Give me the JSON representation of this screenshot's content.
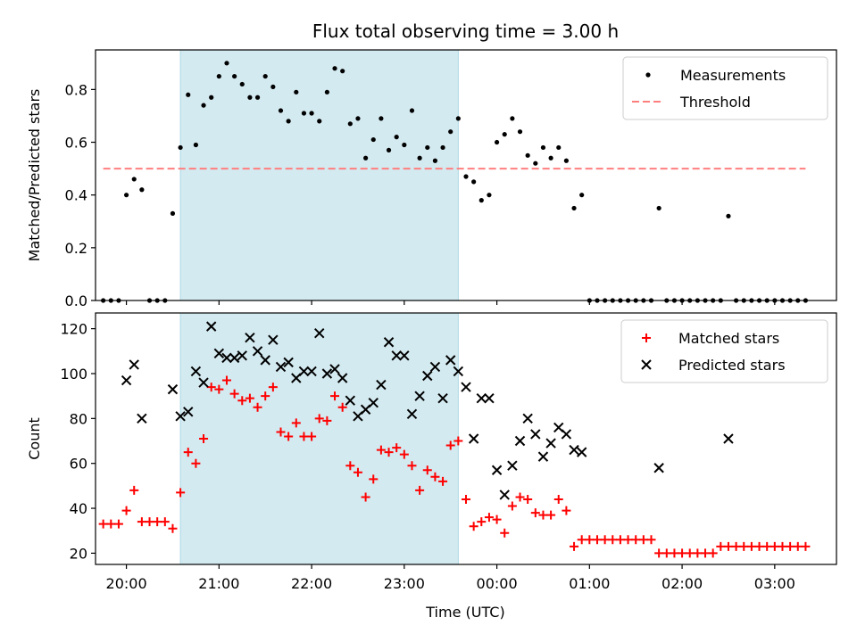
{
  "chart_data": [
    {
      "type": "scatter",
      "title": "Flux total observing time = 3.00 h",
      "ylabel": "Matched/Predicted stars",
      "xlabel": "",
      "xlim": [
        "19:40",
        "03:40"
      ],
      "ylim": [
        0,
        0.95
      ],
      "yticks": [
        0.0,
        0.2,
        0.4,
        0.6,
        0.8
      ],
      "ytick_labels": [
        "0.0",
        "0.2",
        "0.4",
        "0.6",
        "0.8"
      ],
      "shaded_interval": [
        "20:35",
        "23:35"
      ],
      "shade_color": "#d3eaf0",
      "legend_position": "upper right",
      "series": [
        {
          "name": "Measurements",
          "color": "#000000",
          "marker": "dot",
          "points": [
            [
              "19:45",
              0
            ],
            [
              "19:50",
              0
            ],
            [
              "19:55",
              0
            ],
            [
              "20:00",
              0.4
            ],
            [
              "20:05",
              0.46
            ],
            [
              "20:10",
              0.42
            ],
            [
              "20:15",
              0
            ],
            [
              "20:20",
              0
            ],
            [
              "20:25",
              0
            ],
            [
              "20:30",
              0.33
            ],
            [
              "20:35",
              0.58
            ],
            [
              "20:40",
              0.78
            ],
            [
              "20:45",
              0.59
            ],
            [
              "20:50",
              0.74
            ],
            [
              "20:55",
              0.77
            ],
            [
              "21:00",
              0.85
            ],
            [
              "21:05",
              0.9
            ],
            [
              "21:10",
              0.85
            ],
            [
              "21:15",
              0.82
            ],
            [
              "21:20",
              0.77
            ],
            [
              "21:25",
              0.77
            ],
            [
              "21:30",
              0.85
            ],
            [
              "21:35",
              0.81
            ],
            [
              "21:40",
              0.72
            ],
            [
              "21:45",
              0.68
            ],
            [
              "21:50",
              0.79
            ],
            [
              "21:55",
              0.71
            ],
            [
              "22:00",
              0.71
            ],
            [
              "22:05",
              0.68
            ],
            [
              "22:10",
              0.79
            ],
            [
              "22:15",
              0.88
            ],
            [
              "22:20",
              0.87
            ],
            [
              "22:25",
              0.67
            ],
            [
              "22:30",
              0.69
            ],
            [
              "22:35",
              0.54
            ],
            [
              "22:40",
              0.61
            ],
            [
              "22:45",
              0.69
            ],
            [
              "22:50",
              0.57
            ],
            [
              "22:55",
              0.62
            ],
            [
              "23:00",
              0.59
            ],
            [
              "23:05",
              0.72
            ],
            [
              "23:10",
              0.54
            ],
            [
              "23:15",
              0.58
            ],
            [
              "23:20",
              0.53
            ],
            [
              "23:25",
              0.58
            ],
            [
              "23:30",
              0.64
            ],
            [
              "23:35",
              0.69
            ],
            [
              "23:40",
              0.47
            ],
            [
              "23:45",
              0.45
            ],
            [
              "23:50",
              0.38
            ],
            [
              "23:55",
              0.4
            ],
            [
              "00:00",
              0.6
            ],
            [
              "00:05",
              0.63
            ],
            [
              "00:10",
              0.69
            ],
            [
              "00:15",
              0.64
            ],
            [
              "00:20",
              0.55
            ],
            [
              "00:25",
              0.52
            ],
            [
              "00:30",
              0.58
            ],
            [
              "00:35",
              0.54
            ],
            [
              "00:40",
              0.58
            ],
            [
              "00:45",
              0.53
            ],
            [
              "00:50",
              0.35
            ],
            [
              "00:55",
              0.4
            ],
            [
              "01:00",
              0
            ],
            [
              "01:05",
              0
            ],
            [
              "01:10",
              0
            ],
            [
              "01:15",
              0
            ],
            [
              "01:20",
              0
            ],
            [
              "01:25",
              0
            ],
            [
              "01:30",
              0
            ],
            [
              "01:35",
              0
            ],
            [
              "01:40",
              0
            ],
            [
              "01:45",
              0.35
            ],
            [
              "01:50",
              0
            ],
            [
              "01:55",
              0
            ],
            [
              "02:00",
              0
            ],
            [
              "02:05",
              0
            ],
            [
              "02:10",
              0
            ],
            [
              "02:15",
              0
            ],
            [
              "02:20",
              0
            ],
            [
              "02:25",
              0
            ],
            [
              "02:30",
              0.32
            ],
            [
              "02:35",
              0
            ],
            [
              "02:40",
              0
            ],
            [
              "02:45",
              0
            ],
            [
              "02:50",
              0
            ],
            [
              "02:55",
              0
            ],
            [
              "03:00",
              0
            ],
            [
              "03:05",
              0
            ],
            [
              "03:10",
              0
            ],
            [
              "03:15",
              0
            ],
            [
              "03:20",
              0
            ]
          ]
        },
        {
          "name": "Threshold",
          "color": "#ff7f7f",
          "linestyle": "dashed",
          "value": 0.5,
          "x_range": [
            "19:45",
            "03:20"
          ]
        }
      ]
    },
    {
      "type": "scatter",
      "title": "",
      "ylabel": "Count",
      "xlabel": "Time (UTC)",
      "xlim": [
        "19:40",
        "03:40"
      ],
      "ylim": [
        15,
        127
      ],
      "yticks": [
        20,
        40,
        60,
        80,
        100,
        120
      ],
      "ytick_labels": [
        "20",
        "40",
        "60",
        "80",
        "100",
        "120"
      ],
      "xticks": [
        "20:00",
        "21:00",
        "22:00",
        "23:00",
        "00:00",
        "01:00",
        "02:00",
        "03:00"
      ],
      "shaded_interval": [
        "20:35",
        "23:35"
      ],
      "shade_color": "#d3eaf0",
      "legend_position": "upper right",
      "series": [
        {
          "name": "Matched stars",
          "color": "#ff0000",
          "marker": "plus",
          "points": [
            [
              "19:45",
              33
            ],
            [
              "19:50",
              33
            ],
            [
              "19:55",
              33
            ],
            [
              "20:00",
              39
            ],
            [
              "20:05",
              48
            ],
            [
              "20:10",
              34
            ],
            [
              "20:15",
              34
            ],
            [
              "20:20",
              34
            ],
            [
              "20:25",
              34
            ],
            [
              "20:30",
              31
            ],
            [
              "20:35",
              47
            ],
            [
              "20:40",
              65
            ],
            [
              "20:45",
              60
            ],
            [
              "20:50",
              71
            ],
            [
              "20:55",
              94
            ],
            [
              "21:00",
              93
            ],
            [
              "21:05",
              97
            ],
            [
              "21:10",
              91
            ],
            [
              "21:15",
              88
            ],
            [
              "21:20",
              89
            ],
            [
              "21:25",
              85
            ],
            [
              "21:30",
              90
            ],
            [
              "21:35",
              94
            ],
            [
              "21:40",
              74
            ],
            [
              "21:45",
              72
            ],
            [
              "21:50",
              78
            ],
            [
              "21:55",
              72
            ],
            [
              "22:00",
              72
            ],
            [
              "22:05",
              80
            ],
            [
              "22:10",
              79
            ],
            [
              "22:15",
              90
            ],
            [
              "22:20",
              85
            ],
            [
              "22:25",
              59
            ],
            [
              "22:30",
              56
            ],
            [
              "22:35",
              45
            ],
            [
              "22:40",
              53
            ],
            [
              "22:45",
              66
            ],
            [
              "22:50",
              65
            ],
            [
              "22:55",
              67
            ],
            [
              "23:00",
              64
            ],
            [
              "23:05",
              59
            ],
            [
              "23:10",
              48
            ],
            [
              "23:15",
              57
            ],
            [
              "23:20",
              54
            ],
            [
              "23:25",
              52
            ],
            [
              "23:30",
              68
            ],
            [
              "23:35",
              70
            ],
            [
              "23:40",
              44
            ],
            [
              "23:45",
              32
            ],
            [
              "23:50",
              34
            ],
            [
              "23:55",
              36
            ],
            [
              "00:00",
              35
            ],
            [
              "00:05",
              29
            ],
            [
              "00:10",
              41
            ],
            [
              "00:15",
              45
            ],
            [
              "00:20",
              44
            ],
            [
              "00:25",
              38
            ],
            [
              "00:30",
              37
            ],
            [
              "00:35",
              37
            ],
            [
              "00:40",
              44
            ],
            [
              "00:45",
              39
            ],
            [
              "00:50",
              23
            ],
            [
              "00:55",
              26
            ],
            [
              "01:00",
              26
            ],
            [
              "01:05",
              26
            ],
            [
              "01:10",
              26
            ],
            [
              "01:15",
              26
            ],
            [
              "01:20",
              26
            ],
            [
              "01:25",
              26
            ],
            [
              "01:30",
              26
            ],
            [
              "01:35",
              26
            ],
            [
              "01:40",
              26
            ],
            [
              "01:45",
              20
            ],
            [
              "01:50",
              20
            ],
            [
              "01:55",
              20
            ],
            [
              "02:00",
              20
            ],
            [
              "02:05",
              20
            ],
            [
              "02:10",
              20
            ],
            [
              "02:15",
              20
            ],
            [
              "02:20",
              20
            ],
            [
              "02:25",
              23
            ],
            [
              "02:30",
              23
            ],
            [
              "02:35",
              23
            ],
            [
              "02:40",
              23
            ],
            [
              "02:45",
              23
            ],
            [
              "02:50",
              23
            ],
            [
              "02:55",
              23
            ],
            [
              "03:00",
              23
            ],
            [
              "03:05",
              23
            ],
            [
              "03:10",
              23
            ],
            [
              "03:15",
              23
            ],
            [
              "03:20",
              23
            ]
          ]
        },
        {
          "name": "Predicted stars",
          "color": "#000000",
          "marker": "x",
          "points": [
            [
              "20:00",
              97
            ],
            [
              "20:05",
              104
            ],
            [
              "20:10",
              80
            ],
            [
              "20:30",
              93
            ],
            [
              "20:35",
              81
            ],
            [
              "20:40",
              83
            ],
            [
              "20:45",
              101
            ],
            [
              "20:50",
              96
            ],
            [
              "20:55",
              121
            ],
            [
              "21:00",
              109
            ],
            [
              "21:05",
              107
            ],
            [
              "21:10",
              107
            ],
            [
              "21:15",
              108
            ],
            [
              "21:20",
              116
            ],
            [
              "21:25",
              110
            ],
            [
              "21:30",
              106
            ],
            [
              "21:35",
              115
            ],
            [
              "21:40",
              103
            ],
            [
              "21:45",
              105
            ],
            [
              "21:50",
              98
            ],
            [
              "21:55",
              101
            ],
            [
              "22:00",
              101
            ],
            [
              "22:05",
              118
            ],
            [
              "22:10",
              100
            ],
            [
              "22:15",
              102
            ],
            [
              "22:20",
              98
            ],
            [
              "22:25",
              88
            ],
            [
              "22:30",
              81
            ],
            [
              "22:35",
              84
            ],
            [
              "22:40",
              87
            ],
            [
              "22:45",
              95
            ],
            [
              "22:50",
              114
            ],
            [
              "22:55",
              108
            ],
            [
              "23:00",
              108
            ],
            [
              "23:05",
              82
            ],
            [
              "23:10",
              90
            ],
            [
              "23:15",
              99
            ],
            [
              "23:20",
              103
            ],
            [
              "23:25",
              89
            ],
            [
              "23:30",
              106
            ],
            [
              "23:35",
              101
            ],
            [
              "23:40",
              94
            ],
            [
              "23:45",
              71
            ],
            [
              "23:50",
              89
            ],
            [
              "23:55",
              89
            ],
            [
              "00:00",
              57
            ],
            [
              "00:05",
              46
            ],
            [
              "00:10",
              59
            ],
            [
              "00:15",
              70
            ],
            [
              "00:20",
              80
            ],
            [
              "00:25",
              73
            ],
            [
              "00:30",
              63
            ],
            [
              "00:35",
              69
            ],
            [
              "00:40",
              76
            ],
            [
              "00:45",
              73
            ],
            [
              "00:50",
              66
            ],
            [
              "00:55",
              65
            ],
            [
              "01:45",
              58
            ],
            [
              "02:30",
              71
            ]
          ]
        }
      ]
    }
  ]
}
